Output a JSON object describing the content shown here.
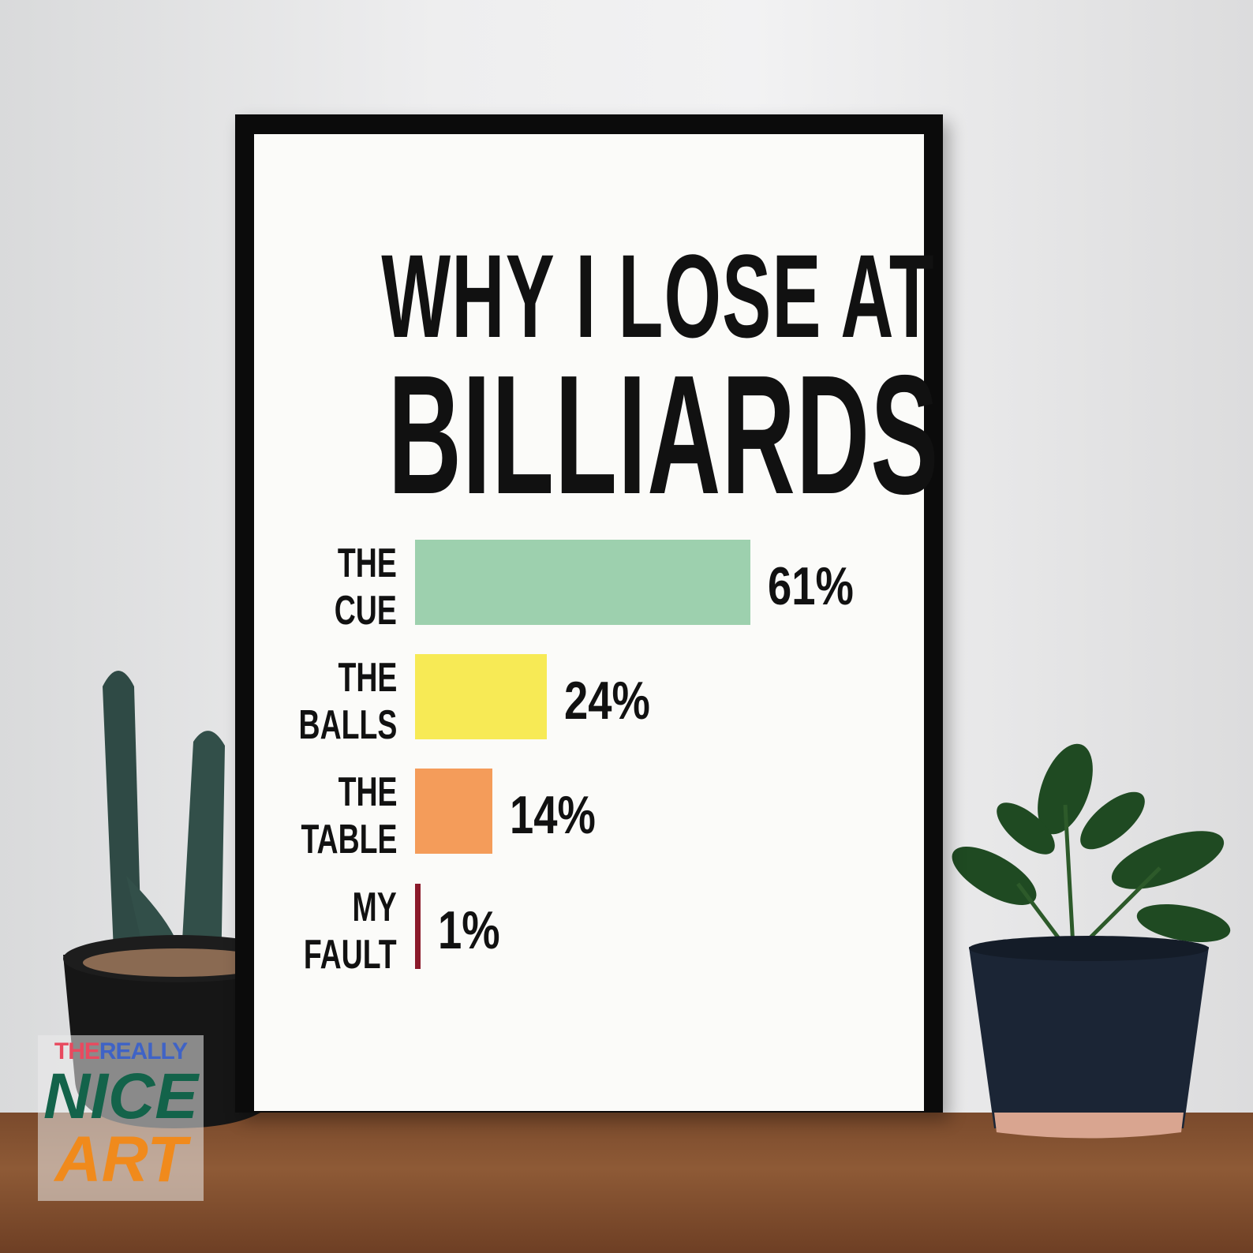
{
  "chart_data": {
    "type": "bar",
    "orientation": "horizontal",
    "title": "WHY I LOSE AT BILLIARDS",
    "title_lines": [
      "WHY I LOSE AT",
      "BILLIARDS"
    ],
    "categories": [
      {
        "lines": [
          "THE",
          "CUE"
        ]
      },
      {
        "lines": [
          "THE",
          "BALLS"
        ]
      },
      {
        "lines": [
          "THE",
          "TABLE"
        ]
      },
      {
        "lines": [
          "MY",
          "FAULT"
        ]
      }
    ],
    "values": [
      61,
      24,
      14,
      1
    ],
    "value_labels": [
      "61%",
      "24%",
      "14%",
      "1%"
    ],
    "colors": [
      "#9dd0ae",
      "#f7ea55",
      "#f49c5a",
      "#8b1a2b"
    ],
    "grid": false,
    "axes_visible": false
  },
  "watermark": {
    "line1a": "THE",
    "line1b": "REALLY",
    "line2": "NICE",
    "line3": "ART"
  }
}
